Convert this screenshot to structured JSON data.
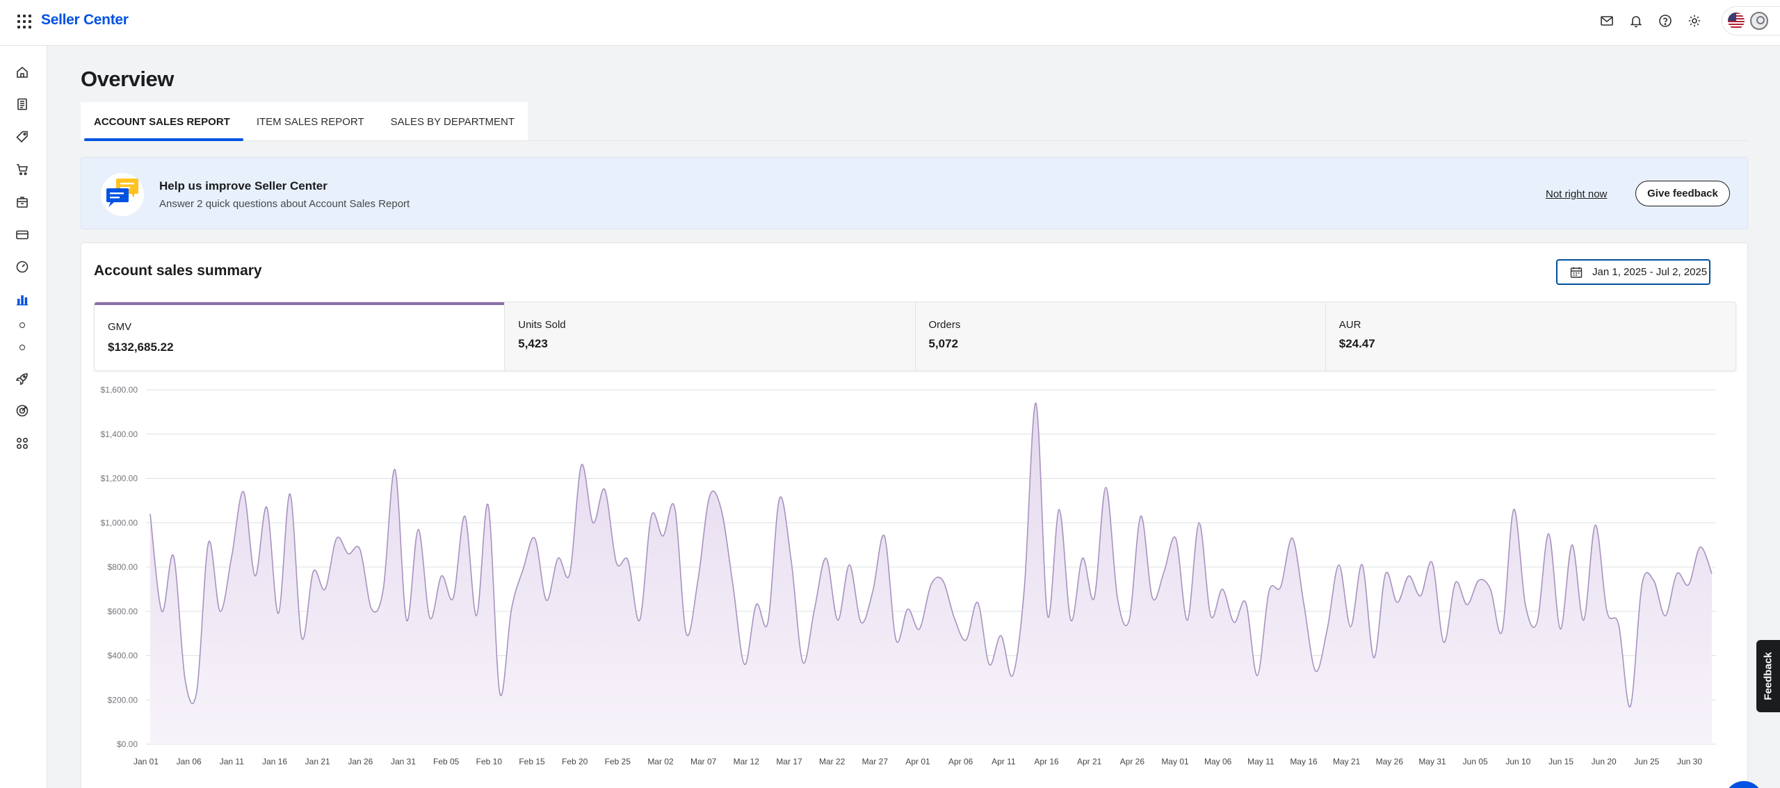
{
  "header": {
    "brand": "Seller Center"
  },
  "page": {
    "title": "Overview"
  },
  "tabs": [
    {
      "label": "ACCOUNT SALES REPORT",
      "active": true
    },
    {
      "label": "ITEM SALES REPORT",
      "active": false
    },
    {
      "label": "SALES BY DEPARTMENT",
      "active": false
    }
  ],
  "banner": {
    "title": "Help us improve Seller Center",
    "subtitle": "Answer 2 quick questions about Account Sales Report",
    "dismiss_label": "Not right now",
    "feedback_label": "Give feedback"
  },
  "summary": {
    "title": "Account sales summary",
    "date_range": "Jan 1, 2025 - Jul 2, 2025",
    "metrics": [
      {
        "label": "GMV",
        "value": "$132,685.22",
        "active": true
      },
      {
        "label": "Units Sold",
        "value": "5,423",
        "active": false
      },
      {
        "label": "Orders",
        "value": "5,072",
        "active": false
      },
      {
        "label": "AUR",
        "value": "$24.47",
        "active": false
      }
    ]
  },
  "feedback_tab": "Feedback",
  "colors": {
    "brand": "#0053e2",
    "series_line": "#a892bf",
    "series_fill": "#ece4f2",
    "active_metric": "#8a6fa8"
  },
  "chart_data": {
    "type": "area",
    "ylim": [
      0,
      1600
    ],
    "y_ticks": [
      "$0.00",
      "$200.00",
      "$400.00",
      "$600.00",
      "$800.00",
      "$1,000.00",
      "$1,200.00",
      "$1,400.00",
      "$1,600.00"
    ],
    "x_ticks": [
      "Jan 01",
      "Jan 06",
      "Jan 11",
      "Jan 16",
      "Jan 21",
      "Jan 26",
      "Jan 31",
      "Feb 05",
      "Feb 10",
      "Feb 15",
      "Feb 20",
      "Feb 25",
      "Mar 02",
      "Mar 07",
      "Mar 12",
      "Mar 17",
      "Mar 22",
      "Mar 27",
      "Apr 01",
      "Apr 06",
      "Apr 11",
      "Apr 16",
      "Apr 21",
      "Apr 26",
      "May 01",
      "May 06",
      "May 11",
      "May 16",
      "May 21",
      "May 26",
      "May 31",
      "Jun 05",
      "Jun 10",
      "Jun 15",
      "Jun 20",
      "Jun 25",
      "Jun 30"
    ],
    "values": [
      1040,
      600,
      850,
      290,
      240,
      910,
      600,
      850,
      1140,
      760,
      1070,
      590,
      1130,
      480,
      780,
      700,
      930,
      860,
      880,
      610,
      700,
      1240,
      560,
      970,
      570,
      760,
      660,
      1030,
      580,
      1080,
      230,
      610,
      790,
      930,
      650,
      840,
      770,
      1260,
      1000,
      1150,
      820,
      830,
      560,
      1030,
      940,
      1070,
      500,
      740,
      1120,
      1060,
      720,
      360,
      630,
      550,
      1110,
      830,
      370,
      610,
      840,
      560,
      810,
      550,
      690,
      940,
      470,
      610,
      520,
      720,
      740,
      570,
      470,
      640,
      360,
      490,
      310,
      700,
      1540,
      580,
      1060,
      560,
      840,
      660,
      1160,
      660,
      560,
      1030,
      660,
      780,
      930,
      560,
      1000,
      580,
      700,
      550,
      640,
      310,
      690,
      710,
      930,
      630,
      330,
      520,
      810,
      530,
      810,
      390,
      770,
      640,
      760,
      670,
      820,
      460,
      730,
      630,
      740,
      700,
      510,
      1060,
      630,
      550,
      950,
      520,
      900,
      560,
      990,
      600,
      540,
      170,
      720,
      740,
      580,
      770,
      720,
      890,
      770
    ]
  }
}
